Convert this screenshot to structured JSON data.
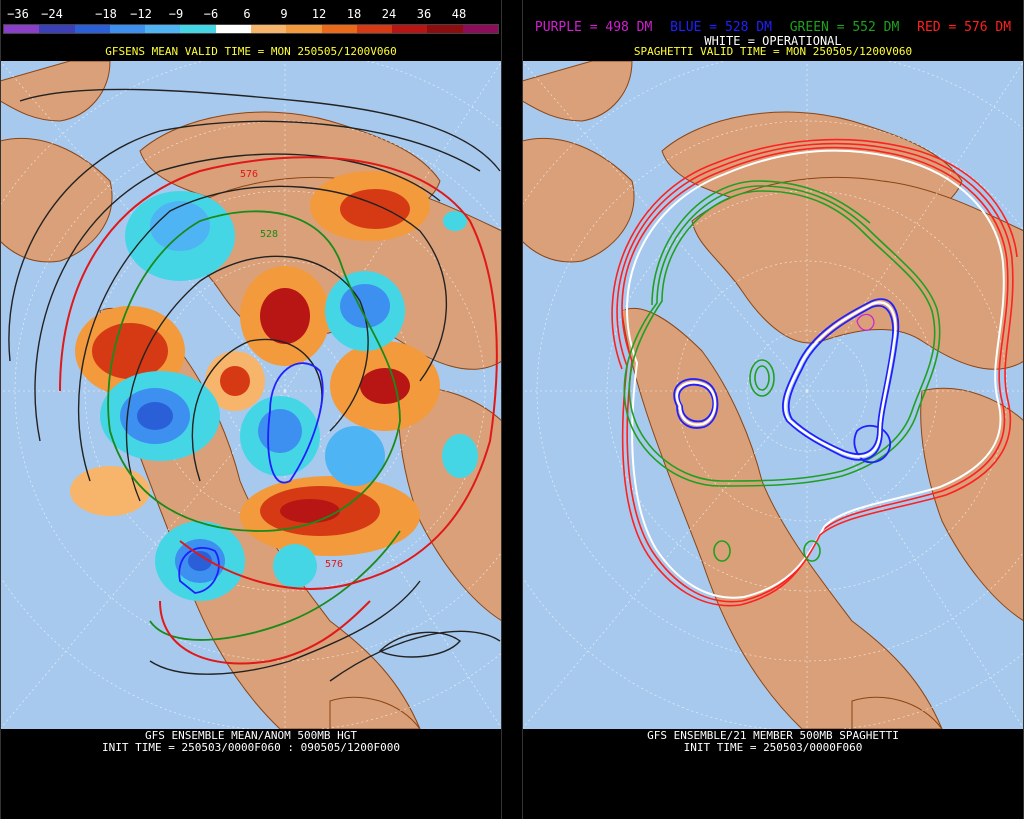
{
  "left": {
    "colorbar_labels": [
      "−36",
      "−24",
      "−18",
      "−12",
      "−9",
      "−6",
      "6",
      "9",
      "12",
      "18",
      "24",
      "36",
      "48"
    ],
    "colorbar_colors": [
      "#8a3fc9",
      "#3b3fb8",
      "#2a5fd8",
      "#3d8ff0",
      "#4fb4f4",
      "#45d6e6",
      "#ffffff",
      "#f7b56b",
      "#f39a3d",
      "#ea6a1a",
      "#d63a15",
      "#b81515",
      "#8c0d0d",
      "#8c0d5a"
    ],
    "subtitle": "GFSENS MEAN VALID TIME = MON 250505/1200V060",
    "contour_labels": [
      "576",
      "528",
      "576"
    ],
    "footer_line1": "GFS ENSEMBLE MEAN/ANOM 500MB HGT",
    "footer_line2": "INIT TIME = 250503/0000F060 : 090505/1200F000"
  },
  "right": {
    "legend": {
      "purple": {
        "text": "PURPLE = 498 DM",
        "color": "#d020d0"
      },
      "blue": {
        "text": "BLUE = 528 DM",
        "color": "#2020ff"
      },
      "green": {
        "text": "GREEN = 552 DM",
        "color": "#20a020"
      },
      "red": {
        "text": "RED = 576 DM",
        "color": "#ff2020"
      }
    },
    "operational": "WHITE = OPERATIONAL",
    "subtitle": "SPAGHETTI VALID TIME = MON 250505/1200V060",
    "footer_line1": "GFS ENSEMBLE/21 MEMBER 500MB SPAGHETTI",
    "footer_line2": "INIT TIME = 250503/0000F060"
  },
  "colors": {
    "ocean": "#a8c9ee",
    "land": "#d9a07a",
    "border": "#8b4513",
    "background": "#000000"
  }
}
